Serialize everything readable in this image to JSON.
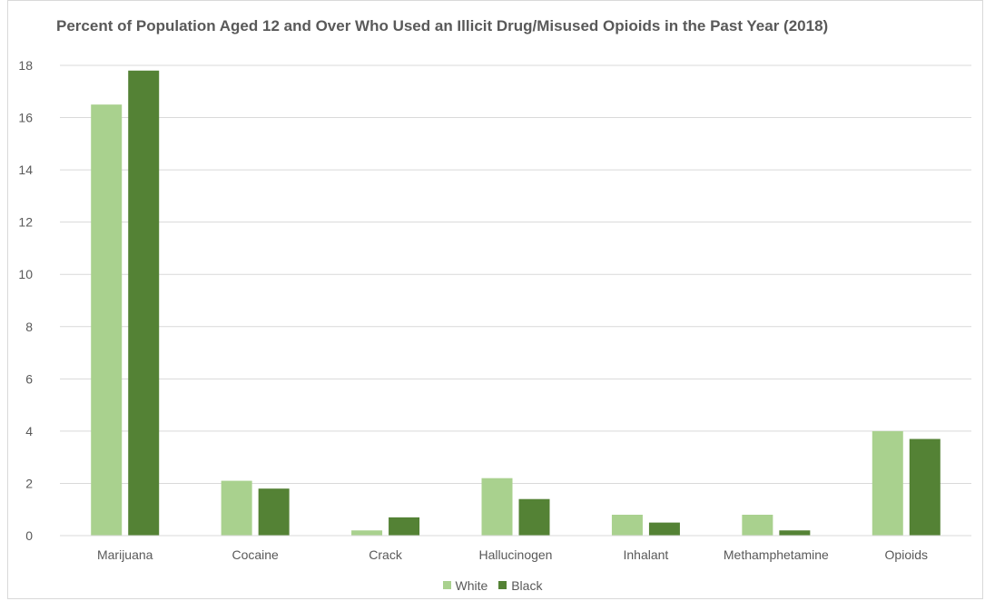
{
  "colors": {
    "white": "#a9d18e",
    "black": "#548235",
    "grid": "#d9d9d9",
    "text": "#595959"
  },
  "chart_data": {
    "type": "bar",
    "title": "Percent of Population Aged 12 and Over Who Used an Illicit Drug/Misused Opioids in the Past Year (2018)",
    "categories": [
      "Marijuana",
      "Cocaine",
      "Crack",
      "Hallucinogen",
      "Inhalant",
      "Methamphetamine",
      "Opioids"
    ],
    "series": [
      {
        "name": "White",
        "values": [
          16.5,
          2.1,
          0.2,
          2.2,
          0.8,
          0.8,
          4.0
        ]
      },
      {
        "name": "Black",
        "values": [
          17.8,
          1.8,
          0.7,
          1.4,
          0.5,
          0.2,
          3.7
        ]
      }
    ],
    "ylim": [
      0,
      18
    ],
    "yticks": [
      0,
      2,
      4,
      6,
      8,
      10,
      12,
      14,
      16,
      18
    ],
    "grid": true,
    "legend": "bottom-center",
    "xlabel": "",
    "ylabel": ""
  }
}
